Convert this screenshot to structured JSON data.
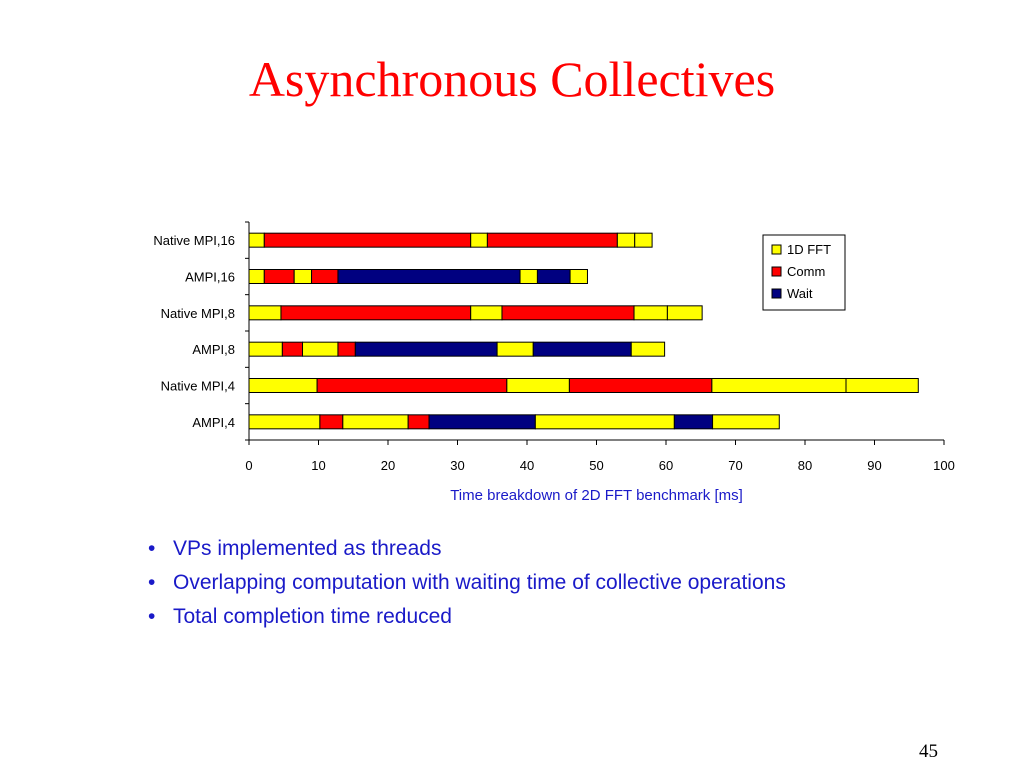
{
  "title": "Asynchronous Collectives",
  "chart_data": {
    "type": "stacked-bar-horizontal",
    "categories": [
      "Native MPI,16",
      "AMPI,16",
      "Native MPI,8",
      "AMPI,8",
      "Native MPI,4",
      "AMPI,4"
    ],
    "segments": [
      [
        [
          "1D FFT",
          2.2
        ],
        [
          "Comm",
          29.7
        ],
        [
          "1D FFT",
          2.4
        ],
        [
          "Comm",
          18.7
        ],
        [
          "1D FFT",
          2.5
        ],
        [
          "1D FFT",
          2.5
        ]
      ],
      [
        [
          "1D FFT",
          2.2
        ],
        [
          "Comm",
          4.3
        ],
        [
          "1D FFT",
          2.5
        ],
        [
          "Comm",
          3.8
        ],
        [
          "Wait",
          26.2
        ],
        [
          "1D FFT",
          2.5
        ],
        [
          "Wait",
          4.7
        ],
        [
          "1D FFT",
          2.5
        ]
      ],
      [
        [
          "1D FFT",
          4.6
        ],
        [
          "Comm",
          27.3
        ],
        [
          "1D FFT",
          4.5
        ],
        [
          "Comm",
          19.0
        ],
        [
          "1D FFT",
          4.8
        ],
        [
          "1D FFT",
          5.0
        ]
      ],
      [
        [
          "1D FFT",
          4.8
        ],
        [
          "Comm",
          2.9
        ],
        [
          "1D FFT",
          5.1
        ],
        [
          "Comm",
          2.5
        ],
        [
          "Wait",
          20.4
        ],
        [
          "1D FFT",
          5.2
        ],
        [
          "Wait",
          14.1
        ],
        [
          "1D FFT",
          4.8
        ]
      ],
      [
        [
          "1D FFT",
          9.8
        ],
        [
          "Comm",
          27.3
        ],
        [
          "1D FFT",
          9.0
        ],
        [
          "Comm",
          20.5
        ],
        [
          "1D FFT",
          19.3
        ],
        [
          "1D FFT",
          10.4
        ]
      ],
      [
        [
          "1D FFT",
          10.2
        ],
        [
          "Comm",
          3.3
        ],
        [
          "1D FFT",
          9.4
        ],
        [
          "Comm",
          3.0
        ],
        [
          "Wait",
          15.3
        ],
        [
          "1D FFT",
          20.0
        ],
        [
          "Wait",
          5.5
        ],
        [
          "1D FFT",
          9.6
        ]
      ]
    ],
    "xticks": [
      0,
      10,
      20,
      30,
      40,
      50,
      60,
      70,
      80,
      90,
      100
    ],
    "xlim": [
      0,
      100
    ],
    "xlabel": "Time breakdown of 2D FFT benchmark [ms]",
    "legend": [
      {
        "name": "1D FFT",
        "color": "#ffff00"
      },
      {
        "name": "Comm",
        "color": "#ff0000"
      },
      {
        "name": "Wait",
        "color": "#000080"
      }
    ],
    "legend_position": "top-right",
    "grid": false
  },
  "bullets": [
    "VPs implemented as threads",
    "Overlapping computation with waiting time of collective operations",
    "Total completion time reduced"
  ],
  "bullet_marker": "•",
  "page_number": "45"
}
